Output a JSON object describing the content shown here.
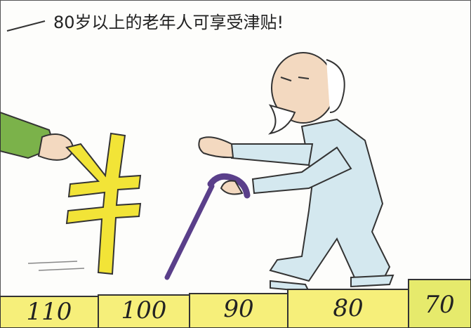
{
  "caption": "80岁以上的老年人可享受津贴!",
  "steps": [
    "110",
    "100",
    "90",
    "80",
    "70"
  ]
}
